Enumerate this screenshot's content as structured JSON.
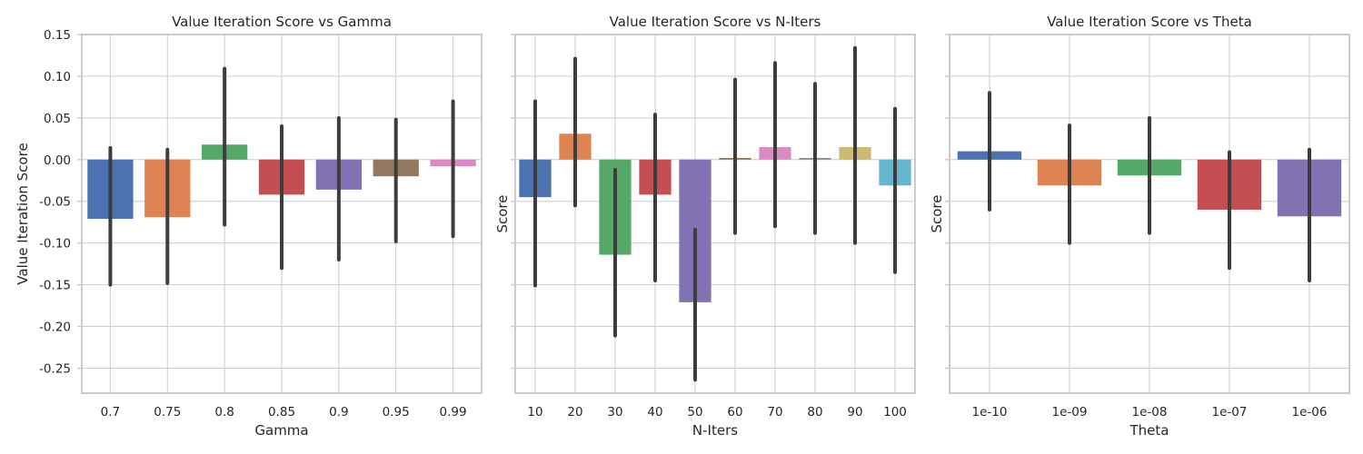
{
  "chart_data": [
    {
      "type": "bar",
      "title": "Value Iteration Score vs Gamma",
      "xlabel": "Gamma",
      "ylabel": "Value Iteration Score",
      "categories": [
        "0.7",
        "0.75",
        "0.8",
        "0.85",
        "0.9",
        "0.95",
        "0.99"
      ],
      "values": [
        -0.071,
        -0.069,
        0.018,
        -0.042,
        -0.036,
        -0.02,
        -0.008
      ],
      "ci_low": [
        -0.15,
        -0.148,
        -0.078,
        -0.13,
        -0.12,
        -0.098,
        -0.092
      ],
      "ci_high": [
        0.014,
        0.012,
        0.109,
        0.04,
        0.05,
        0.048,
        0.07
      ],
      "colors": [
        "#4c72b0",
        "#dd8452",
        "#55a868",
        "#c44e52",
        "#8172b3",
        "#937860",
        "#da8bc3"
      ],
      "ylim": [
        -0.28,
        0.15
      ],
      "yticks": [
        "0.15",
        "0.10",
        "0.05",
        "0.00",
        "-0.05",
        "-0.10",
        "-0.15",
        "-0.20",
        "-0.25"
      ],
      "ytick_values": [
        0.15,
        0.1,
        0.05,
        0.0,
        -0.05,
        -0.1,
        -0.15,
        -0.2,
        -0.25
      ],
      "grid": true
    },
    {
      "type": "bar",
      "title": "Value Iteration Score vs N-Iters",
      "xlabel": "N-Iters",
      "ylabel": "Score",
      "categories": [
        "10",
        "20",
        "30",
        "40",
        "50",
        "60",
        "70",
        "80",
        "90",
        "100"
      ],
      "values": [
        -0.045,
        0.031,
        -0.114,
        -0.042,
        -0.171,
        0.002,
        0.015,
        0.002,
        0.015,
        -0.031
      ],
      "ci_low": [
        -0.151,
        -0.055,
        -0.211,
        -0.145,
        -0.264,
        -0.088,
        -0.08,
        -0.088,
        -0.1,
        -0.135
      ],
      "ci_high": [
        0.07,
        0.121,
        -0.012,
        0.054,
        -0.084,
        0.096,
        0.116,
        0.091,
        0.134,
        0.061
      ],
      "colors": [
        "#4c72b0",
        "#dd8452",
        "#55a868",
        "#c44e52",
        "#8172b3",
        "#937860",
        "#da8bc3",
        "#8c8c8c",
        "#ccb974",
        "#64b5cd"
      ],
      "ylim": [
        -0.28,
        0.15
      ],
      "grid": true
    },
    {
      "type": "bar",
      "title": "Value Iteration Score vs Theta",
      "xlabel": "Theta",
      "ylabel": "Score",
      "categories": [
        "1e-10",
        "1e-09",
        "1e-08",
        "1e-07",
        "1e-06"
      ],
      "values": [
        0.01,
        -0.031,
        -0.019,
        -0.06,
        -0.068
      ],
      "ci_low": [
        -0.06,
        -0.1,
        -0.088,
        -0.13,
        -0.145
      ],
      "ci_high": [
        0.08,
        0.041,
        0.05,
        0.009,
        0.012
      ],
      "colors": [
        "#4c72b0",
        "#dd8452",
        "#55a868",
        "#c44e52",
        "#8172b3"
      ],
      "ylim": [
        -0.28,
        0.15
      ],
      "grid": true
    }
  ]
}
